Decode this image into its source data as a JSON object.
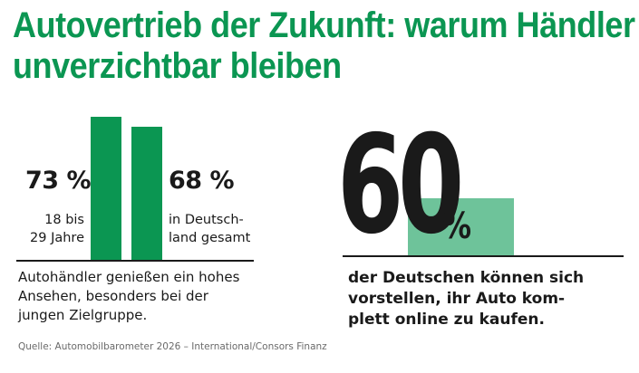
{
  "title_lines": [
    "Autovertrieb der Zukunft: warum Händler",
    "unverzichtbar bleiben"
  ],
  "colors": {
    "accent": "#0b9652",
    "light_accent": "#6ec39a",
    "text": "#1a1a1a"
  },
  "chart_data": [
    {
      "type": "bar",
      "categories": [
        "18 bis 29 Jahre",
        "in Deutschland gesamt"
      ],
      "values": [
        73,
        68
      ],
      "unit": "%",
      "value_labels": [
        "73 %",
        "68 %"
      ],
      "category_label_lines": [
        [
          "18 bis",
          "29 Jahre"
        ],
        [
          "in Deutsch-",
          "land gesamt"
        ]
      ],
      "annotation_lines": [
        "Autohändler genießen ein hohes",
        "Ansehen, besonders bei der",
        "jungen Zielgruppe."
      ],
      "ylim": [
        0,
        100
      ]
    },
    {
      "type": "bar",
      "values": [
        60
      ],
      "unit": "%",
      "big_number": "60",
      "big_unit": "%",
      "annotation_lines": [
        "der Deutschen können sich",
        "vorstellen, ihr Auto kom-",
        "plett online zu kaufen."
      ],
      "ylim": [
        0,
        100
      ]
    }
  ],
  "source": "Quelle: Automobilbarometer 2026 – International/Consors Finanz"
}
